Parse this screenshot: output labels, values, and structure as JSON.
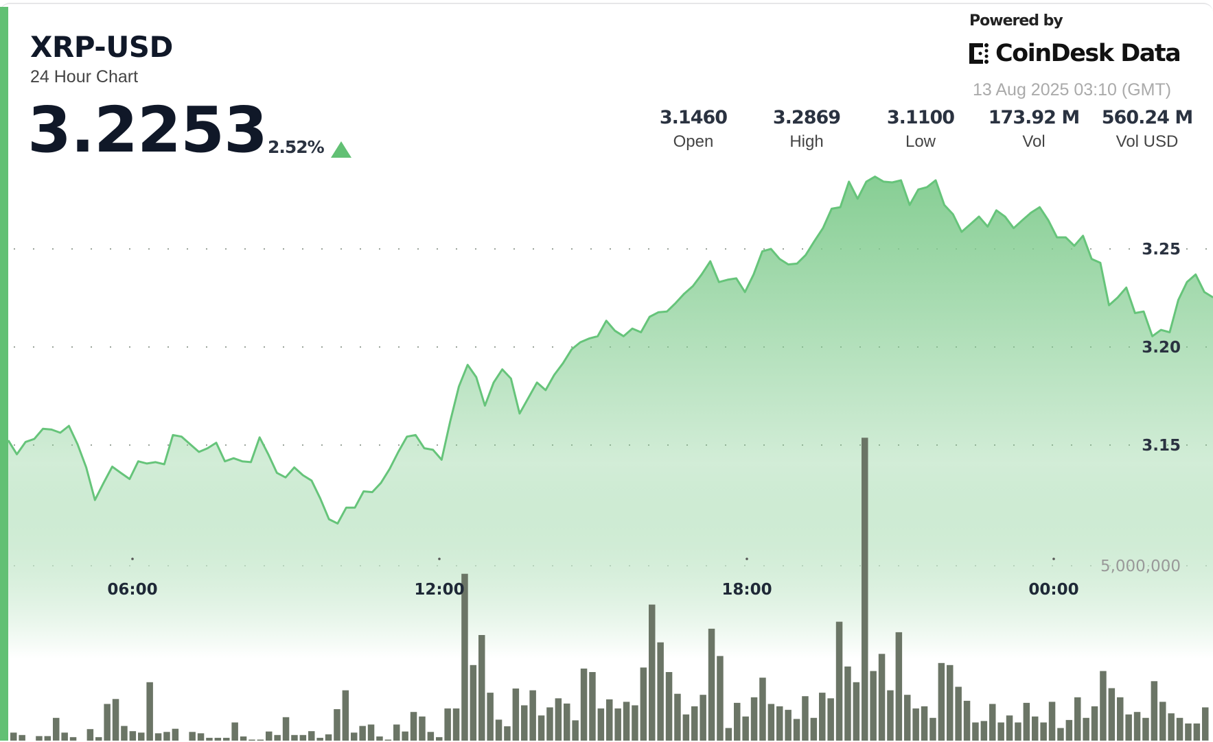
{
  "header": {
    "title": "XRP-USD",
    "subtitle": "24 Hour Chart",
    "price": "3.2253",
    "change": "2.52%",
    "change_direction": "up"
  },
  "branding": {
    "powered_by": "Powered by",
    "logo_text": "CoinDesk Data",
    "timestamp": "13 Aug 2025 03:10 (GMT)"
  },
  "stats": [
    {
      "value": "3.1460",
      "label": "Open"
    },
    {
      "value": "3.2869",
      "label": "High"
    },
    {
      "value": "3.1100",
      "label": "Low"
    },
    {
      "value": "173.92 M",
      "label": "Vol"
    },
    {
      "value": "560.24 M",
      "label": "Vol USD"
    }
  ],
  "colors": {
    "accent": "#62c074",
    "line": "#66c47a",
    "fill_top": "#7fcb8d",
    "volume_bar": "#6b7566",
    "arrow_up": "#62c074"
  },
  "chart_data": {
    "type": "area",
    "title": "",
    "x_tick_labels": [
      "06:00",
      "12:00",
      "18:00",
      "00:00"
    ],
    "y_tick_labels": [
      "3.25",
      "3.20",
      "3.15"
    ],
    "y_ticks": [
      3.25,
      3.2,
      3.15
    ],
    "volume_tick_label": "5,000,000",
    "volume_tick": 5000000,
    "grid": "dotted horizontal",
    "price_series": [
      3.1524,
      3.1453,
      3.1516,
      3.1531,
      3.1583,
      3.1579,
      3.1563,
      3.1598,
      3.1504,
      3.1386,
      3.122,
      3.1307,
      3.139,
      3.1358,
      3.1327,
      3.1417,
      3.1406,
      3.1413,
      3.1402,
      3.1551,
      3.1543,
      3.1504,
      3.1465,
      3.1484,
      3.1512,
      3.1417,
      3.1433,
      3.1417,
      3.1413,
      3.1539,
      3.1453,
      3.1358,
      3.1335,
      3.1386,
      3.1346,
      3.1319,
      3.1228,
      3.1122,
      3.11,
      3.1181,
      3.1181,
      3.1264,
      3.126,
      3.1307,
      3.1378,
      3.1465,
      3.1543,
      3.1551,
      3.1484,
      3.1476,
      3.1425,
      3.1622,
      3.1799,
      3.1909,
      3.1846,
      3.1701,
      3.1819,
      3.1886,
      3.1839,
      3.1661,
      3.174,
      3.1819,
      3.178,
      3.1858,
      3.1917,
      3.1988,
      3.2024,
      3.2043,
      3.2055,
      3.2134,
      3.2083,
      3.2055,
      3.2094,
      3.2075,
      3.2154,
      3.2177,
      3.2181,
      3.2224,
      3.2272,
      3.2311,
      3.237,
      3.2437,
      3.2331,
      3.2343,
      3.235,
      3.228,
      3.237,
      3.2488,
      3.25,
      3.2449,
      3.2421,
      3.2425,
      3.2469,
      3.2539,
      3.2606,
      3.2705,
      3.2713,
      3.2843,
      3.2756,
      3.2843,
      3.2869,
      3.2843,
      3.2839,
      3.285,
      3.2724,
      3.2803,
      3.2815,
      3.285,
      3.2724,
      3.2677,
      3.2587,
      3.2626,
      3.2665,
      3.2614,
      3.2697,
      3.2665,
      3.2606,
      3.2646,
      3.2685,
      3.2713,
      3.2646,
      3.2559,
      3.2559,
      3.2516,
      3.2567,
      3.2449,
      3.2429,
      3.2213,
      3.2252,
      3.2303,
      3.2173,
      3.2181,
      3.2055,
      3.2087,
      3.2075,
      3.224,
      3.2331,
      3.237,
      3.228,
      3.2253
    ],
    "volume_millions": [
      0.23,
      0.16,
      0,
      0.13,
      0.13,
      0.65,
      0.23,
      0.1,
      0,
      0.33,
      0.1,
      1.05,
      1.19,
      0.42,
      0.27,
      0.23,
      1.67,
      0.21,
      0.25,
      0.34,
      0,
      0.25,
      0.21,
      0.08,
      0.08,
      0.08,
      0.52,
      0.12,
      0.03,
      0.03,
      0.26,
      0.16,
      0.67,
      0.16,
      0.16,
      0.27,
      0.08,
      0.18,
      0.9,
      1.44,
      0.23,
      0.42,
      0.46,
      0.12,
      0.03,
      0.46,
      0.26,
      0.82,
      0.69,
      0.25,
      0.1,
      0.92,
      0.92,
      4.77,
      2.16,
      3.02,
      1.37,
      0.6,
      0.41,
      1.49,
      1.01,
      1.44,
      0.72,
      0.95,
      1.21,
      1.06,
      0.58,
      2.06,
      1.96,
      0.92,
      1.18,
      0.92,
      1.11,
      1.01,
      2.09,
      3.89,
      2.81,
      1.96,
      1.34,
      0.75,
      0.98,
      1.31,
      3.2,
      2.42,
      0.36,
      1.08,
      0.69,
      1.24,
      1.8,
      1.05,
      0.98,
      0.88,
      0.62,
      1.27,
      0.65,
      1.37,
      1.21,
      3.4,
      2.12,
      1.67,
      8.66,
      1.99,
      2.48,
      1.44,
      3.1,
      1.31,
      0.92,
      0.98,
      0.65,
      2.22,
      2.16,
      1.54,
      1.14,
      0.52,
      0.56,
      1.05,
      0.52,
      0.72,
      0.52,
      1.08,
      0.69,
      0.52,
      1.11,
      0.36,
      0.59,
      1.24,
      0.65,
      0.98,
      1.99,
      1.5,
      1.24,
      0.75,
      0.82,
      0.65,
      1.7,
      1.11,
      0.78,
      0.65,
      0.49,
      0.49,
      0.95
    ]
  }
}
